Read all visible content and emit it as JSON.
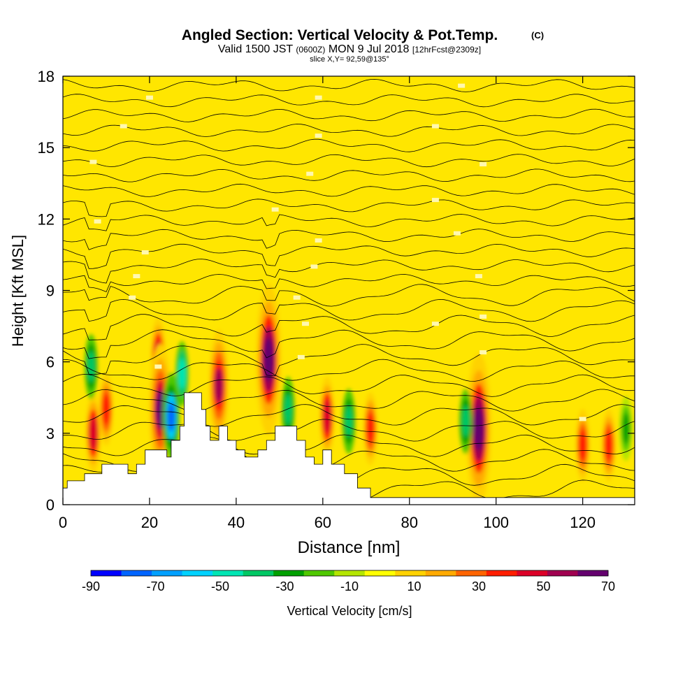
{
  "chart_data": {
    "type": "heatmap",
    "title": "Angled Section: Vertical Velocity & Pot.Temp.",
    "title_mark": "(C)",
    "subtitle_parts": [
      "Valid 1500 JST",
      "(0600Z)",
      "MON 9 Jul 2018",
      "[12hrFcst@2309z]"
    ],
    "slice_label": "slice X,Y= 92,59@135°",
    "xlabel": "Distance [nm]",
    "ylabel": "Height [Kft MSL]",
    "xlim": [
      0,
      132
    ],
    "ylim": [
      0,
      18
    ],
    "x_ticks": [
      "0",
      "20",
      "40",
      "60",
      "80",
      "100",
      "120"
    ],
    "x_tick_values": [
      0,
      20,
      40,
      60,
      80,
      100,
      120
    ],
    "y_ticks": [
      "0",
      "3",
      "6",
      "9",
      "12",
      "15",
      "18"
    ],
    "y_tick_values": [
      0,
      3,
      6,
      9,
      12,
      15,
      18
    ],
    "colorbar": {
      "label": "Vertical Velocity [cm/s]",
      "tick_labels": [
        "-90",
        "-70",
        "-50",
        "-30",
        "-10",
        "10",
        "30",
        "50",
        "70"
      ],
      "bounds": [
        -90,
        -80,
        -70,
        -60,
        -50,
        -40,
        -30,
        -20,
        -10,
        0,
        10,
        20,
        30,
        40,
        50,
        60,
        70
      ],
      "colors": [
        "#0000ff",
        "#0064ff",
        "#00a0ff",
        "#00d2ff",
        "#00e6b4",
        "#00c864",
        "#00a000",
        "#50c800",
        "#b4e600",
        "#ffff00",
        "#ffd200",
        "#ffaa00",
        "#ff6400",
        "#ff1e00",
        "#dc0028",
        "#a00050",
        "#64006e"
      ]
    },
    "background_value_cm_s": 5,
    "updraft_cores": [
      {
        "x": 7,
        "y": 3.0,
        "w": 0.9
      },
      {
        "x": 10,
        "y": 4.0,
        "w": 0.8
      },
      {
        "x": 22,
        "y": 6.2,
        "w": 0.9
      },
      {
        "x": 22.5,
        "y": 4.0,
        "w": 1.2
      },
      {
        "x": 36,
        "y": 5.0,
        "w": 1.0
      },
      {
        "x": 47.5,
        "y": 6.1,
        "w": 1.4
      },
      {
        "x": 61,
        "y": 3.7,
        "w": 0.9
      },
      {
        "x": 71,
        "y": 3.2,
        "w": 0.8
      },
      {
        "x": 96,
        "y": 3.2,
        "w": 1.4
      },
      {
        "x": 120,
        "y": 2.5,
        "w": 0.8
      },
      {
        "x": 126,
        "y": 2.5,
        "w": 0.8
      }
    ],
    "downdraft_cores": [
      {
        "x": 6.5,
        "y": 5.8,
        "w": -0.6
      },
      {
        "x": 25,
        "y": 3.7,
        "w": -1.2
      },
      {
        "x": 27.5,
        "y": 5.5,
        "w": -0.7
      },
      {
        "x": 52,
        "y": 4.0,
        "w": -0.5
      },
      {
        "x": 66,
        "y": 3.5,
        "w": -0.6
      },
      {
        "x": 93,
        "y": 3.5,
        "w": -0.5
      },
      {
        "x": 130,
        "y": 3.2,
        "w": -0.4
      }
    ],
    "terrain_height_kft": [
      [
        0,
        0.7
      ],
      [
        1,
        1.0
      ],
      [
        5,
        1.3
      ],
      [
        9,
        1.7
      ],
      [
        14,
        1.7
      ],
      [
        15,
        1.3
      ],
      [
        17,
        1.7
      ],
      [
        19,
        2.3
      ],
      [
        22,
        2.3
      ],
      [
        24,
        2.0
      ],
      [
        25,
        2.7
      ],
      [
        27,
        3.3
      ],
      [
        28,
        4.7
      ],
      [
        31,
        4.7
      ],
      [
        32,
        4.0
      ],
      [
        33,
        3.3
      ],
      [
        34,
        2.7
      ],
      [
        36,
        3.3
      ],
      [
        38,
        2.7
      ],
      [
        40,
        2.3
      ],
      [
        42,
        2.0
      ],
      [
        45,
        2.3
      ],
      [
        47,
        2.7
      ],
      [
        49,
        3.3
      ],
      [
        53,
        3.3
      ],
      [
        54,
        2.7
      ],
      [
        56,
        2.0
      ],
      [
        58,
        1.7
      ],
      [
        60,
        2.3
      ],
      [
        62,
        1.7
      ],
      [
        65,
        1.3
      ],
      [
        68,
        0.7
      ],
      [
        71,
        0.3
      ],
      [
        132,
        0.3
      ]
    ],
    "theta_label_positions": [
      {
        "x": 20,
        "y": 17.1
      },
      {
        "x": 59,
        "y": 17.1
      },
      {
        "x": 92,
        "y": 17.6
      },
      {
        "x": 14,
        "y": 15.9
      },
      {
        "x": 59,
        "y": 15.5
      },
      {
        "x": 86,
        "y": 15.9
      },
      {
        "x": 7,
        "y": 14.4
      },
      {
        "x": 57,
        "y": 13.9
      },
      {
        "x": 97,
        "y": 14.3
      },
      {
        "x": 49,
        "y": 12.4
      },
      {
        "x": 86,
        "y": 12.8
      },
      {
        "x": 8,
        "y": 11.9
      },
      {
        "x": 59,
        "y": 11.1
      },
      {
        "x": 91,
        "y": 11.4
      },
      {
        "x": 19,
        "y": 10.6
      },
      {
        "x": 58,
        "y": 10.0
      },
      {
        "x": 96,
        "y": 9.6
      },
      {
        "x": 17,
        "y": 9.6
      },
      {
        "x": 54,
        "y": 8.7
      },
      {
        "x": 97,
        "y": 7.9
      },
      {
        "x": 16,
        "y": 8.7
      },
      {
        "x": 56,
        "y": 7.6
      },
      {
        "x": 86,
        "y": 7.6
      },
      {
        "x": 22,
        "y": 5.8
      },
      {
        "x": 55,
        "y": 6.2
      },
      {
        "x": 97,
        "y": 6.4
      },
      {
        "x": 120,
        "y": 3.6
      }
    ]
  }
}
